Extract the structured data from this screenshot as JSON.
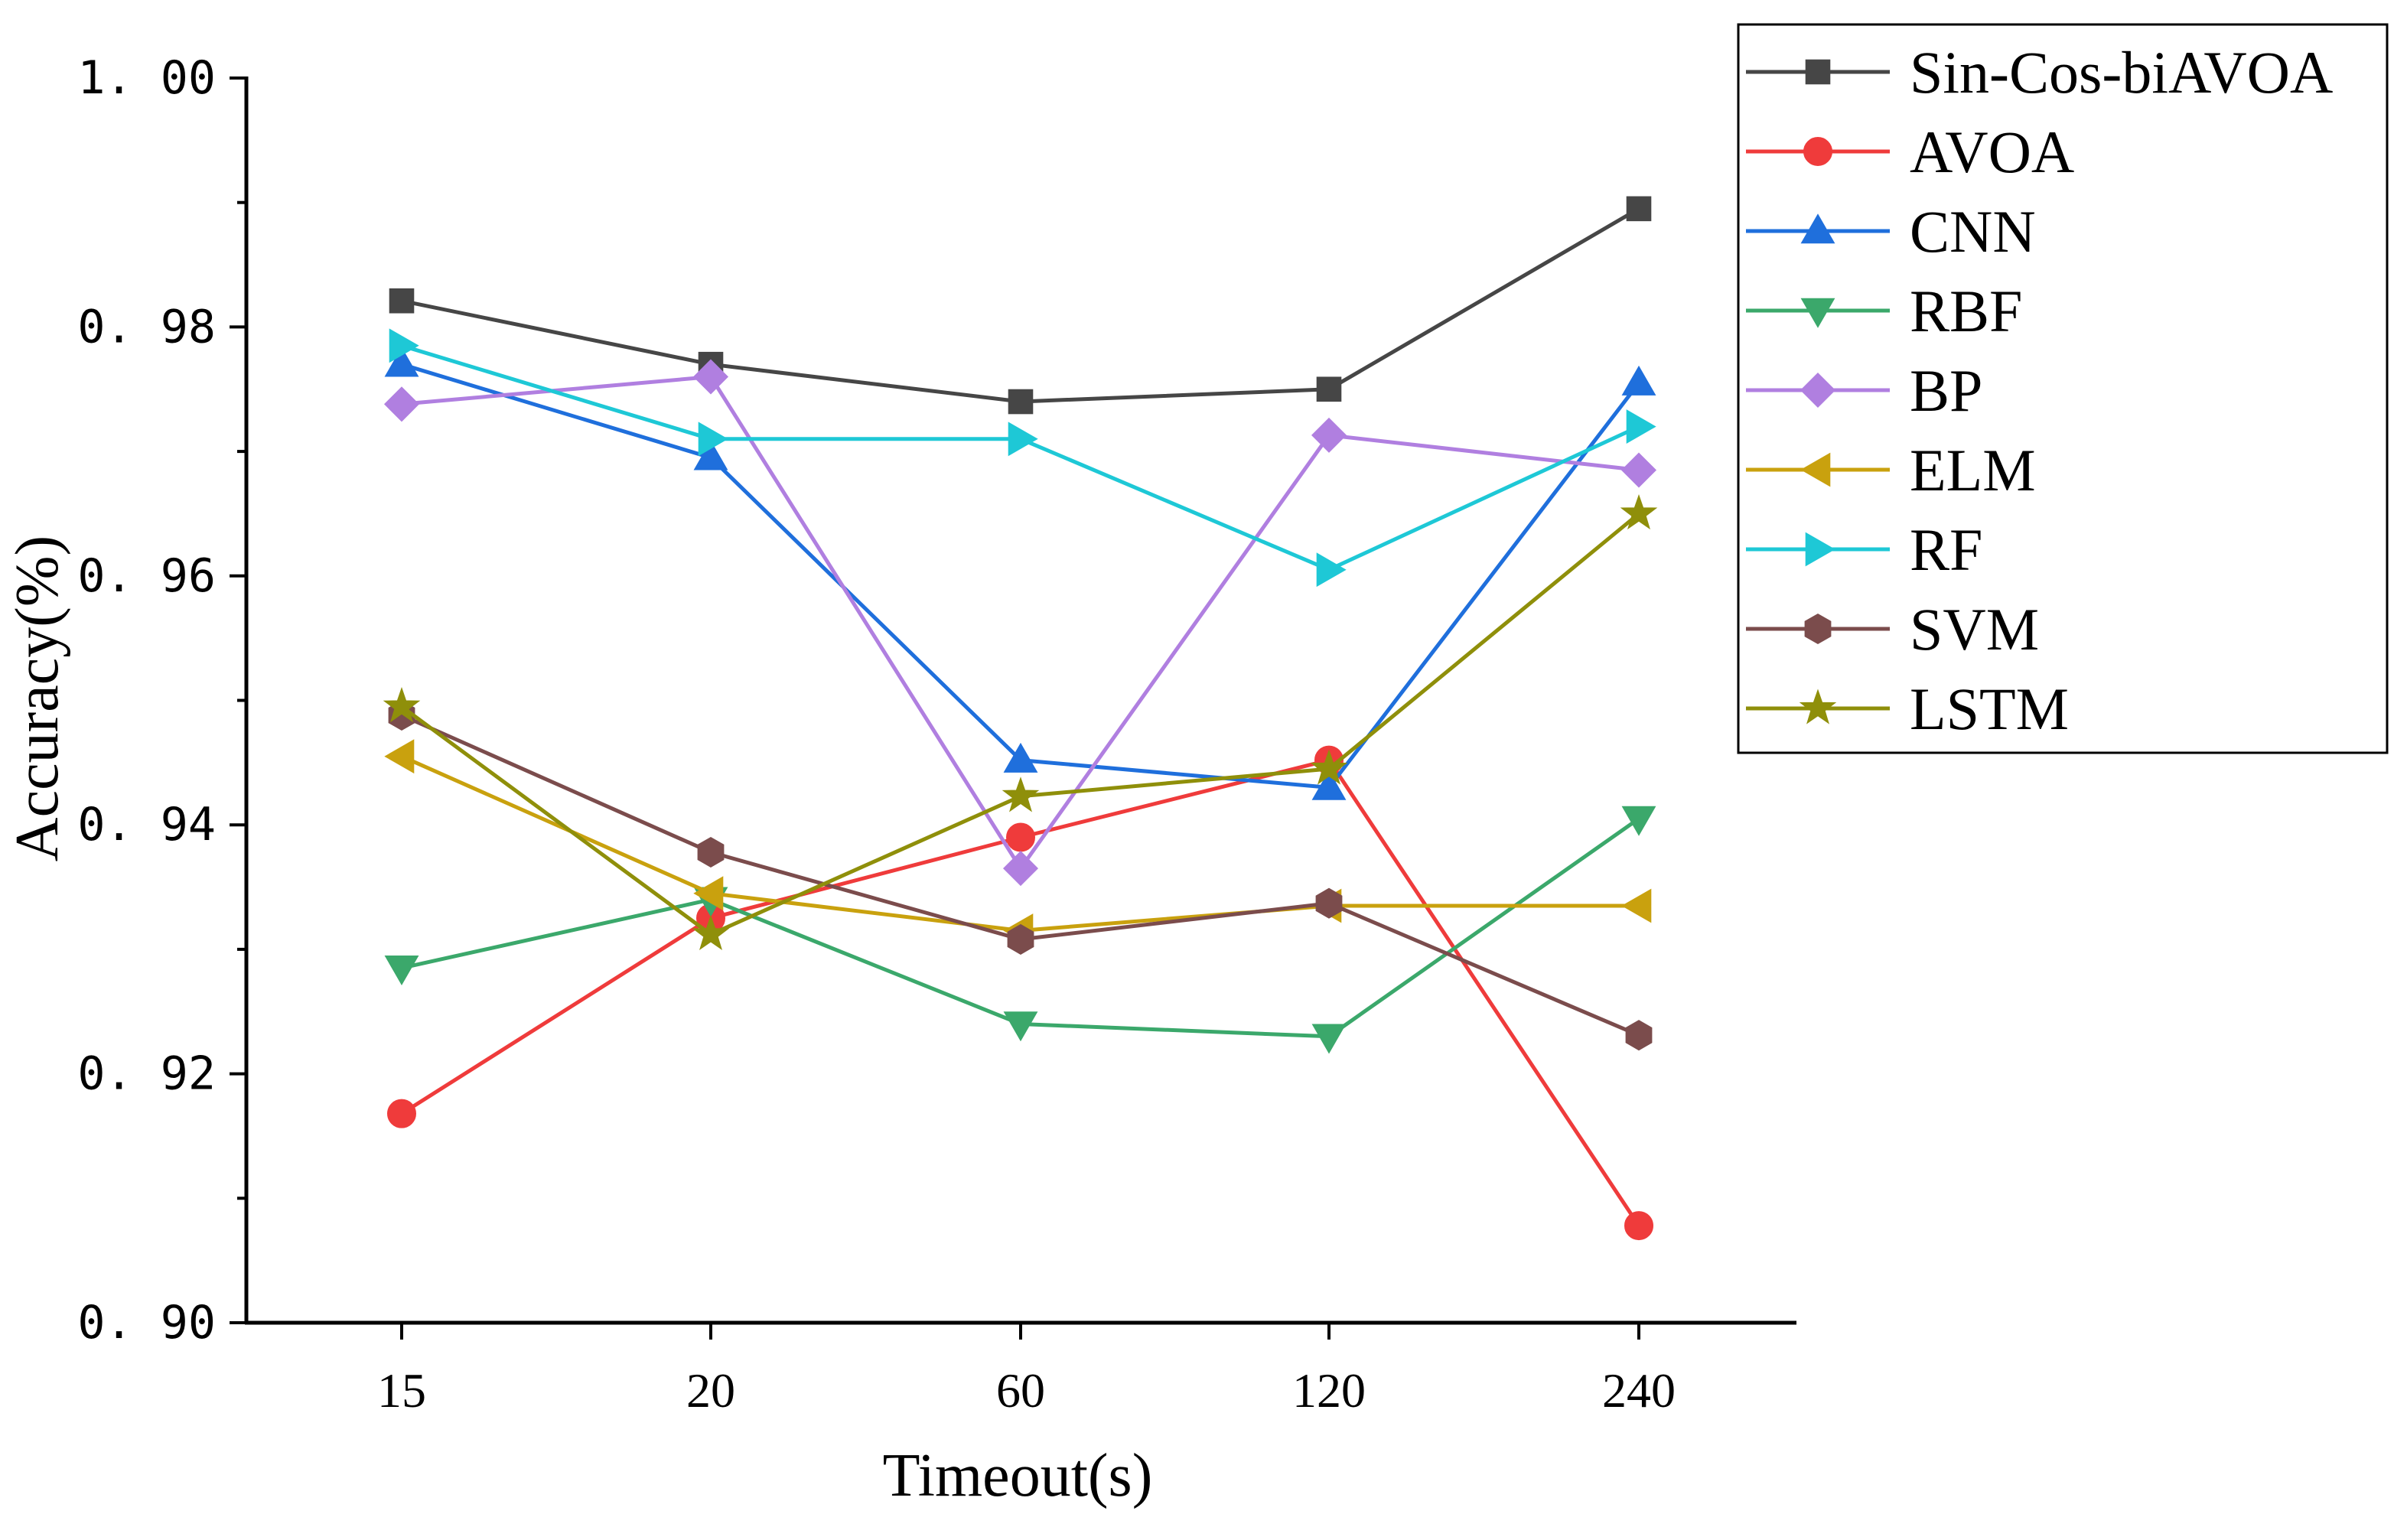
{
  "chart_data": {
    "type": "line",
    "xlabel": "Timeout(s)",
    "ylabel": "Accuracy(%)",
    "categories": [
      "15",
      "20",
      "60",
      "120",
      "240"
    ],
    "ylim": [
      0.9,
      1.0
    ],
    "yticks": [
      "0. 90",
      "0. 92",
      "0. 94",
      "0. 96",
      "0. 98",
      "1. 00"
    ],
    "grid": false,
    "legend_position": "top-right, outside plot",
    "series": [
      {
        "name": "Sin-Cos-biAVOA",
        "color": "#464646",
        "marker": "square",
        "values": [
          0.9821,
          0.977,
          0.974,
          0.975,
          0.9895
        ]
      },
      {
        "name": "AVOA",
        "color": "#ef3b3b",
        "marker": "circle",
        "values": [
          0.9168,
          0.9325,
          0.939,
          0.9452,
          0.9078
        ]
      },
      {
        "name": "CNN",
        "color": "#1f6fdc",
        "marker": "triangle-up",
        "values": [
          0.977,
          0.9695,
          0.9452,
          0.943,
          0.9755
        ]
      },
      {
        "name": "RBF",
        "color": "#3ba86b",
        "marker": "triangle-down",
        "values": [
          0.9285,
          0.934,
          0.924,
          0.923,
          0.9405
        ]
      },
      {
        "name": "BP",
        "color": "#b07fe0",
        "marker": "diamond",
        "values": [
          0.9738,
          0.976,
          0.9365,
          0.9713,
          0.9685
        ]
      },
      {
        "name": "ELM",
        "color": "#c9a10e",
        "marker": "triangle-left",
        "values": [
          0.9455,
          0.9345,
          0.9315,
          0.9335,
          0.9335
        ]
      },
      {
        "name": "RF",
        "color": "#1ec8d6",
        "marker": "triangle-right",
        "values": [
          0.9785,
          0.971,
          0.971,
          0.9605,
          0.972
        ]
      },
      {
        "name": "SVM",
        "color": "#7b4c4c",
        "marker": "hexagon",
        "values": [
          0.9488,
          0.9378,
          0.9308,
          0.9337,
          0.9231
        ]
      },
      {
        "name": "LSTM",
        "color": "#8f8f0a",
        "marker": "star",
        "values": [
          0.9495,
          0.9312,
          0.9423,
          0.9445,
          0.965
        ]
      }
    ]
  }
}
